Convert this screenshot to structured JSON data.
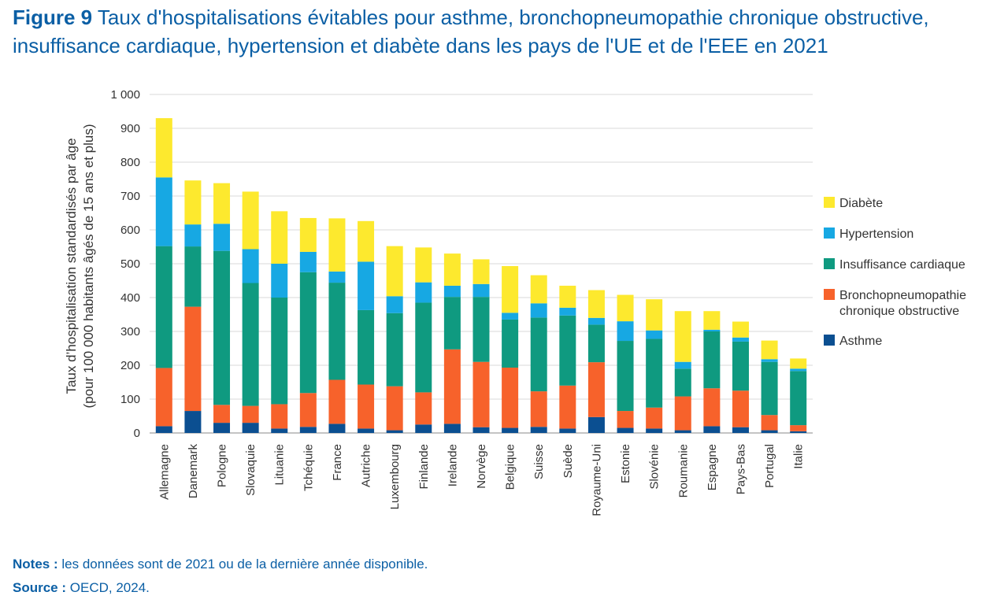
{
  "title": {
    "figure_label": "Figure 9",
    "text": "Taux d'hospitalisations évitables pour asthme, bronchopneumopathie chronique obstructive, insuffisance cardiaque, hypertension et diabète dans les pays de l'UE et de l'EEE en 2021"
  },
  "notes": {
    "notes_label": "Notes :",
    "notes_text": "les données sont de 2021 ou de la dernière année disponible.",
    "source_label": "Source :",
    "source_text": "OECD, 2024."
  },
  "chart_data": {
    "type": "bar",
    "stacked": true,
    "ylabel_line1": "Taux d’hospitalisation standardisés par âge",
    "ylabel_line2": "(pour 100 000 habitants âgés de 15 ans et plus)",
    "ylim": [
      0,
      1000
    ],
    "yticks": [
      0,
      100,
      200,
      300,
      400,
      500,
      600,
      700,
      800,
      900,
      1000
    ],
    "ytick_labels": [
      "0",
      "100",
      "200",
      "300",
      "400",
      "500",
      "600",
      "700",
      "800",
      "900",
      "1 000"
    ],
    "grid": true,
    "legend_position": "right",
    "categories": [
      "Allemagne",
      "Danemark",
      "Pologne",
      "Slovaquie",
      "Lituanie",
      "Tchéquie",
      "France",
      "Autriche",
      "Luxembourg",
      "Finlande",
      "Irelande",
      "Norvège",
      "Belgique",
      "Suisse",
      "Suède",
      "Royaume-Uni",
      "Estonie",
      "Slovénie",
      "Roumanie",
      "Espagne",
      "Pays-Bas",
      "Portugal",
      "Italie"
    ],
    "series": [
      {
        "name": "Asthme",
        "color": "#0b4f91",
        "values": [
          20,
          65,
          30,
          30,
          13,
          18,
          27,
          13,
          8,
          25,
          27,
          17,
          15,
          18,
          13,
          47,
          15,
          13,
          8,
          20,
          17,
          8,
          5
        ]
      },
      {
        "name": "Bronchopneumopathie chronique obstructive",
        "color": "#f7622b",
        "values": [
          172,
          308,
          53,
          50,
          72,
          100,
          130,
          130,
          130,
          95,
          220,
          193,
          178,
          105,
          127,
          162,
          50,
          62,
          100,
          112,
          108,
          45,
          18
        ]
      },
      {
        "name": "Insuffisance cardiaque",
        "color": "#0f9a80",
        "values": [
          360,
          178,
          455,
          363,
          315,
          357,
          287,
          220,
          216,
          265,
          155,
          192,
          142,
          218,
          207,
          111,
          207,
          203,
          82,
          168,
          145,
          157,
          160
        ]
      },
      {
        "name": "Hypertension",
        "color": "#17a8e3",
        "values": [
          203,
          65,
          80,
          100,
          100,
          60,
          33,
          143,
          50,
          60,
          33,
          38,
          20,
          42,
          23,
          20,
          58,
          25,
          20,
          5,
          12,
          8,
          7
        ]
      },
      {
        "name": "Diabète",
        "color": "#fde92e",
        "values": [
          175,
          130,
          120,
          170,
          155,
          100,
          157,
          120,
          148,
          103,
          95,
          73,
          138,
          83,
          65,
          82,
          78,
          92,
          150,
          55,
          47,
          55,
          30
        ]
      }
    ],
    "legend_order": [
      "Diabète",
      "Hypertension",
      "Insuffisance cardiaque",
      "Bronchopneumopathie chronique obstructive",
      "Asthme"
    ]
  }
}
